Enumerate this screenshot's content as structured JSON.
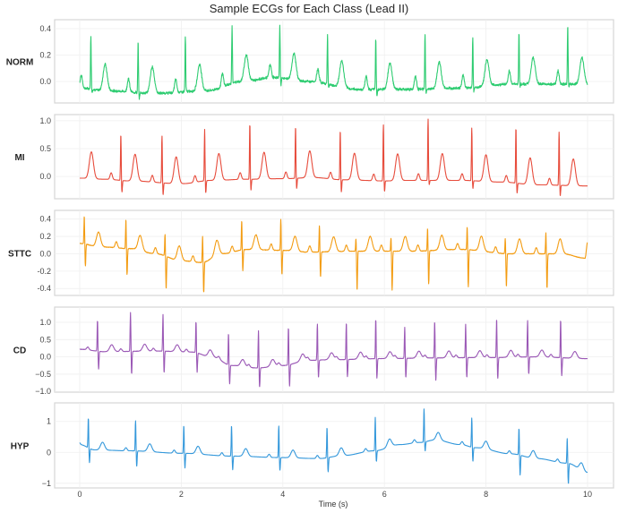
{
  "chart_data": {
    "type": "line",
    "title": "Sample ECGs for Each Class (Lead II)",
    "xlabel": "Time (s)",
    "xlim": [
      -0.5,
      10.5
    ],
    "xticks": [
      0,
      2,
      4,
      6,
      8,
      10
    ],
    "xtick_labels": [
      "0",
      "2",
      "4",
      "6",
      "8",
      "10"
    ],
    "grid": true,
    "panels": [
      {
        "name": "NORM",
        "color": "#2ecc71",
        "ylim": [
          -0.163,
          0.468
        ],
        "yticks": [
          0.0,
          0.2,
          0.4
        ],
        "ytick_labels": [
          "0.0",
          "0.2",
          "0.4"
        ],
        "p_amp": 0.1,
        "t_amp": 0.2,
        "noise": 0.012,
        "baseline": [
          [
            0,
            -0.05
          ],
          [
            0.5,
            -0.07
          ],
          [
            1.5,
            -0.09
          ],
          [
            2.5,
            -0.07
          ],
          [
            3.2,
            0.0
          ],
          [
            3.8,
            0.03
          ],
          [
            4.5,
            0.0
          ],
          [
            5.5,
            -0.06
          ],
          [
            6.5,
            -0.06
          ],
          [
            7.5,
            -0.05
          ],
          [
            8.5,
            -0.02
          ],
          [
            9.5,
            -0.02
          ],
          [
            10,
            -0.02
          ]
        ],
        "beats": [
          [
            0.22,
            0.34,
            -0.08
          ],
          [
            1.15,
            0.3,
            -0.13
          ],
          [
            2.08,
            0.34,
            -0.07
          ],
          [
            3.0,
            0.42,
            -0.02
          ],
          [
            3.94,
            0.43,
            -0.03
          ],
          [
            4.88,
            0.35,
            -0.05
          ],
          [
            5.83,
            0.32,
            -0.11
          ],
          [
            6.8,
            0.36,
            -0.09
          ],
          [
            7.74,
            0.33,
            -0.08
          ],
          [
            8.65,
            0.37,
            -0.04
          ],
          [
            9.61,
            0.42,
            -0.04
          ]
        ]
      },
      {
        "name": "MI",
        "color": "#e74c3c",
        "ylim": [
          -0.4,
          1.11
        ],
        "yticks": [
          0.0,
          0.5,
          1.0
        ],
        "ytick_labels": [
          "0.0",
          "0.5",
          "1.0"
        ],
        "p_amp": 0.12,
        "t_amp": 0.48,
        "noise": 0.0,
        "baseline": [
          [
            0,
            -0.03
          ],
          [
            0.5,
            -0.05
          ],
          [
            1.0,
            -0.08
          ],
          [
            2.0,
            -0.13
          ],
          [
            2.6,
            -0.07
          ],
          [
            3.3,
            -0.05
          ],
          [
            4.0,
            -0.04
          ],
          [
            4.6,
            -0.02
          ],
          [
            5.2,
            -0.06
          ],
          [
            6.0,
            -0.08
          ],
          [
            6.5,
            -0.07
          ],
          [
            7.5,
            -0.07
          ],
          [
            8.3,
            -0.1
          ],
          [
            9.0,
            -0.15
          ],
          [
            10,
            -0.17
          ]
        ],
        "beats": [
          [
            -0.05,
            0.0,
            0.0
          ],
          [
            0.81,
            0.76,
            -0.28
          ],
          [
            1.62,
            0.73,
            -0.33
          ],
          [
            2.46,
            0.85,
            -0.3
          ],
          [
            3.35,
            0.95,
            -0.25
          ],
          [
            4.25,
            0.9,
            -0.22
          ],
          [
            5.13,
            0.83,
            -0.28
          ],
          [
            5.98,
            0.93,
            -0.27
          ],
          [
            6.86,
            1.03,
            -0.15
          ],
          [
            7.72,
            0.87,
            -0.22
          ],
          [
            8.59,
            0.88,
            -0.3
          ],
          [
            9.44,
            0.8,
            -0.35
          ]
        ]
      },
      {
        "name": "STTC",
        "color": "#f39c12",
        "ylim": [
          -0.48,
          0.5
        ],
        "yticks": [
          -0.4,
          -0.2,
          0.0,
          0.2,
          0.4
        ],
        "ytick_labels": [
          "-0.4",
          "-0.2",
          "0.0",
          "0.2",
          "0.4"
        ],
        "p_amp": 0.07,
        "t_amp": 0.17,
        "noise": 0.004,
        "baseline": [
          [
            0,
            0.12
          ],
          [
            0.4,
            0.08
          ],
          [
            1.0,
            0.06
          ],
          [
            1.5,
            0.0
          ],
          [
            2.0,
            -0.08
          ],
          [
            2.4,
            -0.1
          ],
          [
            2.8,
            0.0
          ],
          [
            3.3,
            0.05
          ],
          [
            4.0,
            0.04
          ],
          [
            4.5,
            0.02
          ],
          [
            5.5,
            0.03
          ],
          [
            6.5,
            0.03
          ],
          [
            7.5,
            0.05
          ],
          [
            8.5,
            0.0
          ],
          [
            9.5,
            0.0
          ],
          [
            9.95,
            -0.05
          ],
          [
            10,
            0.13
          ]
        ],
        "beats": [
          [
            0.09,
            0.44,
            -0.14
          ],
          [
            0.91,
            0.4,
            -0.24
          ],
          [
            1.68,
            0.23,
            -0.4
          ],
          [
            2.42,
            0.21,
            -0.45
          ],
          [
            3.19,
            0.39,
            -0.2
          ],
          [
            3.96,
            0.4,
            -0.24
          ],
          [
            4.72,
            0.33,
            -0.27
          ],
          [
            5.44,
            0.18,
            -0.42
          ],
          [
            6.13,
            0.19,
            -0.42
          ],
          [
            6.85,
            0.3,
            -0.35
          ],
          [
            7.63,
            0.32,
            -0.38
          ],
          [
            8.38,
            0.18,
            -0.38
          ],
          [
            9.18,
            0.25,
            -0.4
          ]
        ]
      },
      {
        "name": "CD",
        "color": "#9b59b6",
        "ylim": [
          -1.02,
          1.44
        ],
        "yticks": [
          -1.0,
          -0.5,
          0.0,
          0.5,
          1.0
        ],
        "ytick_labels": [
          "−1.0",
          "−0.5",
          "0.0",
          "0.5",
          "1.0"
        ],
        "p_amp": 0.08,
        "t_amp": 0.2,
        "noise": 0.005,
        "baseline": [
          [
            0,
            0.22
          ],
          [
            0.5,
            0.15
          ],
          [
            1.5,
            0.17
          ],
          [
            2.2,
            0.14
          ],
          [
            2.6,
            0.0
          ],
          [
            3.0,
            -0.25
          ],
          [
            3.5,
            -0.32
          ],
          [
            4.0,
            -0.25
          ],
          [
            4.5,
            -0.1
          ],
          [
            5.0,
            -0.08
          ],
          [
            6.0,
            -0.05
          ],
          [
            7.0,
            -0.03
          ],
          [
            8.0,
            -0.02
          ],
          [
            9.0,
            0.0
          ],
          [
            10,
            -0.05
          ]
        ],
        "beats": [
          [
            0.35,
            1.07,
            -0.36
          ],
          [
            1.0,
            1.3,
            -0.5
          ],
          [
            1.64,
            1.24,
            -0.46
          ],
          [
            2.29,
            1.03,
            -0.44
          ],
          [
            2.93,
            0.69,
            -0.78
          ],
          [
            3.52,
            0.77,
            -0.88
          ],
          [
            4.11,
            0.86,
            -0.86
          ],
          [
            4.68,
            0.96,
            -0.6
          ],
          [
            5.25,
            1.0,
            -0.58
          ],
          [
            5.83,
            1.1,
            -0.62
          ],
          [
            6.4,
            0.87,
            -0.6
          ],
          [
            6.99,
            1.04,
            -0.68
          ],
          [
            7.6,
            0.96,
            -0.6
          ],
          [
            8.21,
            1.11,
            -0.63
          ],
          [
            8.82,
            1.06,
            -0.5
          ],
          [
            9.47,
            1.08,
            -0.55
          ]
        ]
      },
      {
        "name": "HYP",
        "color": "#3498db",
        "ylim": [
          -1.15,
          1.6
        ],
        "yticks": [
          -1,
          0,
          1
        ],
        "ytick_labels": [
          "−1",
          "0",
          "1"
        ],
        "p_amp": 0.1,
        "t_amp": 0.25,
        "noise": 0.0,
        "baseline": [
          [
            0,
            0.25
          ],
          [
            0.3,
            0.08
          ],
          [
            1.0,
            0.05
          ],
          [
            2.0,
            -0.03
          ],
          [
            3.0,
            -0.12
          ],
          [
            4.0,
            -0.17
          ],
          [
            4.7,
            -0.2
          ],
          [
            5.2,
            -0.1
          ],
          [
            5.8,
            0.05
          ],
          [
            6.3,
            0.25
          ],
          [
            6.7,
            0.32
          ],
          [
            7.0,
            0.4
          ],
          [
            7.5,
            0.25
          ],
          [
            7.8,
            0.15
          ],
          [
            8.5,
            -0.05
          ],
          [
            9.0,
            -0.2
          ],
          [
            9.6,
            -0.35
          ],
          [
            10,
            -0.65
          ]
        ],
        "beats": [
          [
            0.17,
            1.12,
            -0.32
          ],
          [
            1.1,
            1.03,
            -0.46
          ],
          [
            2.05,
            0.88,
            -0.51
          ],
          [
            2.99,
            0.88,
            -0.57
          ],
          [
            3.92,
            0.86,
            -0.59
          ],
          [
            4.87,
            0.82,
            -0.64
          ],
          [
            5.82,
            1.14,
            -0.3
          ],
          [
            6.78,
            1.41,
            0.03
          ],
          [
            7.72,
            1.12,
            -0.29
          ],
          [
            8.65,
            0.79,
            -0.73
          ],
          [
            9.6,
            0.46,
            -1.02
          ]
        ]
      }
    ]
  }
}
